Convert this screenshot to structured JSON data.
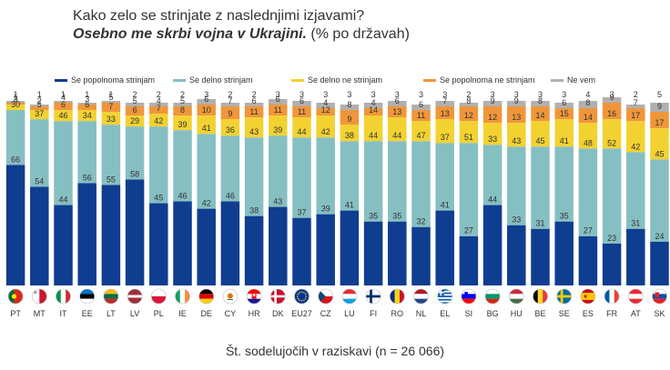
{
  "chart_data": {
    "type": "bar",
    "stacked": true,
    "title": "Kako zelo se strinjate z naslednjimi izjavami?",
    "subtitle": "Osebno me skrbi vojna v Ukrajini.",
    "subtitle_suffix": " (% po državah)",
    "xlabel": "Št. sodelujočih v raziskavi (n = 26 066)",
    "ylabel": "",
    "ylim": [
      0,
      100
    ],
    "grid": false,
    "legend_position": "top",
    "categories": [
      "PT",
      "MT",
      "IT",
      "EE",
      "LT",
      "LV",
      "PL",
      "IE",
      "DE",
      "CY",
      "HR",
      "DK",
      "EU27",
      "CZ",
      "LU",
      "FI",
      "RO",
      "NL",
      "EL",
      "SI",
      "BG",
      "HU",
      "BE",
      "SE",
      "ES",
      "FR",
      "AT",
      "SK"
    ],
    "flags": [
      "pt",
      "mt",
      "it",
      "ee",
      "lt",
      "lv",
      "pl",
      "ie",
      "de",
      "cy",
      "hr",
      "dk",
      "eu",
      "cz",
      "lu",
      "fi",
      "ro",
      "nl",
      "el",
      "si",
      "bg",
      "hu",
      "be",
      "se",
      "es",
      "fr",
      "at",
      "sk"
    ],
    "series": [
      {
        "name": "Se popolnoma strinjam",
        "color": "#0f3d8f",
        "values": [
          66,
          54,
          44,
          56,
          55,
          58,
          45,
          46,
          42,
          46,
          38,
          43,
          37,
          39,
          41,
          35,
          35,
          32,
          41,
          27,
          44,
          33,
          31,
          35,
          27,
          23,
          31,
          24
        ]
      },
      {
        "name": "Se delno strinjam",
        "color": "#86bfc2",
        "values": [
          30,
          37,
          46,
          34,
          33,
          29,
          42,
          39,
          41,
          36,
          43,
          39,
          44,
          42,
          38,
          44,
          44,
          47,
          37,
          51,
          33,
          43,
          45,
          41,
          48,
          52,
          42,
          45
        ]
      },
      {
        "name": "Se delno ne strinjam",
        "color": "#f2d231",
        "values": [
          3,
          5,
          6,
          6,
          7,
          6,
          7,
          8,
          10,
          9,
          11,
          11,
          11,
          12,
          9,
          14,
          13,
          11,
          13,
          12,
          12,
          13,
          14,
          15,
          14,
          16,
          17,
          17
        ]
      },
      {
        "name": "Se popolnoma ne strinjam",
        "color": "#f0963a",
        "values": [
          1,
          2,
          4,
          3,
          5,
          5,
          4,
          5,
          6,
          7,
          6,
          6,
          6,
          4,
          8,
          4,
          6,
          6,
          7,
          8,
          9,
          9,
          8,
          6,
          8,
          9,
          7,
          9
        ]
      },
      {
        "name": "Ne vem",
        "color": "#b0b0b0",
        "values": [
          1,
          1,
          1,
          1,
          1,
          2,
          2,
          2,
          3,
          2,
          2,
          3,
          3,
          3,
          3,
          3,
          3,
          3,
          3,
          2,
          3,
          3,
          3,
          3,
          4,
          3,
          2,
          5
        ]
      }
    ]
  }
}
